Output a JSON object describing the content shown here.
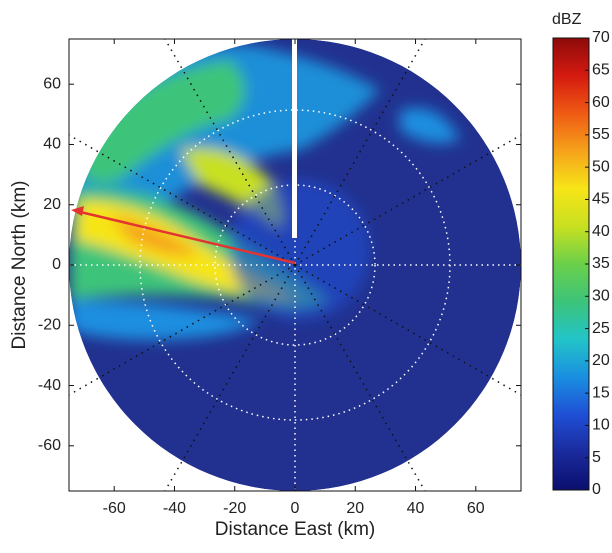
{
  "chart_data": {
    "type": "heatmap",
    "xlabel": "Distance East (km)",
    "ylabel": "Distance North (km)",
    "xlim": [
      -75,
      75
    ],
    "ylim": [
      -75,
      75
    ],
    "xticks": [
      -60,
      -40,
      -20,
      0,
      20,
      40,
      60
    ],
    "yticks": [
      -60,
      -40,
      -20,
      0,
      20,
      40,
      60
    ],
    "colorbar_label": "dBZ",
    "clim": [
      0,
      70
    ],
    "cticks": [
      0,
      5,
      10,
      15,
      20,
      25,
      30,
      35,
      40,
      45,
      50,
      55,
      60,
      65,
      70
    ],
    "colormap": [
      "#0b0f6e",
      "#1a2a9c",
      "#1f4fd6",
      "#1a8fe0",
      "#22c4c8",
      "#3cc47a",
      "#6bd04a",
      "#c8e020",
      "#f7e518",
      "#f5a21a",
      "#ef5a14",
      "#d41a10",
      "#8e0a0a"
    ]
  }
}
